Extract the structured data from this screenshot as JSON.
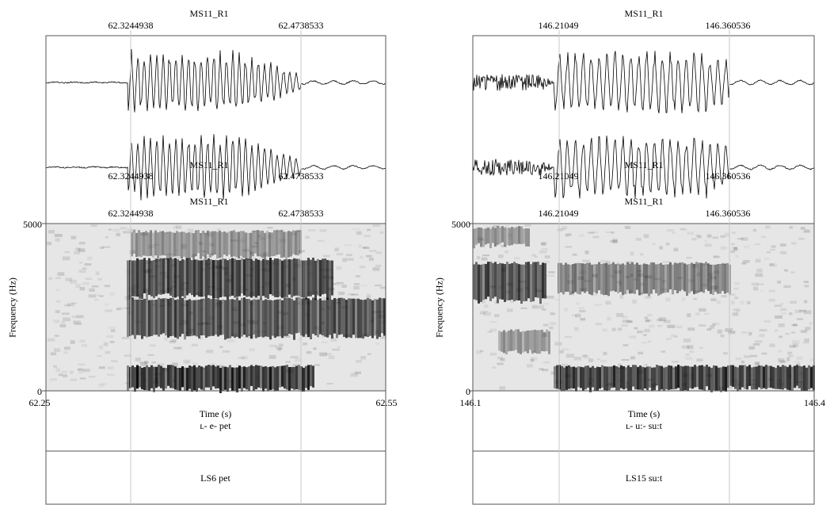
{
  "panels": [
    {
      "channel_name": "MS11_R1",
      "sel_start": "62.3244938",
      "sel_end": "62.4738533",
      "t_min": 62.25,
      "t_max": 62.55,
      "t_start_label": "62.25",
      "t_end_label": "62.55",
      "freq_max_label": "5000",
      "freq_min_label": "0",
      "freq_axis_label": "Frequency (Hz)",
      "time_axis_label": "Time (s)",
      "tier1_text": "ʟ- e- pet",
      "tier2_text": "LS6 pet"
    },
    {
      "channel_name": "MS11_R1",
      "sel_start": "146.21049",
      "sel_end": "146.360536",
      "t_min": 146.1,
      "t_max": 146.4,
      "t_start_label": "146.1",
      "t_end_label": "146.4",
      "freq_max_label": "5000",
      "freq_min_label": "0",
      "freq_axis_label": "Frequency (Hz)",
      "time_axis_label": "Time (s)",
      "tier1_text": "ʟ- u:- su:t",
      "tier2_text": "LS15 su:t"
    }
  ],
  "colors": {
    "axis": "#555555",
    "boundary": "#c8c8c8",
    "waveform": "#000000"
  }
}
